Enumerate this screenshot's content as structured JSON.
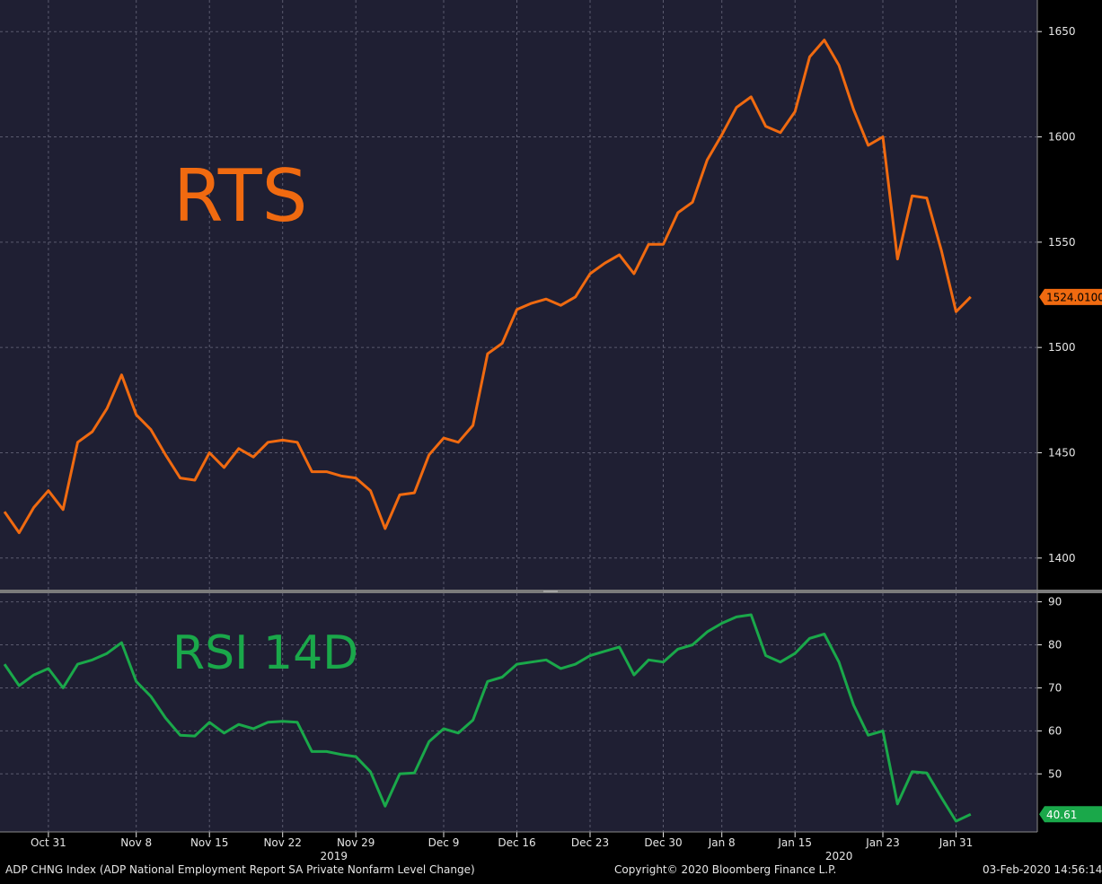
{
  "footer": {
    "left": "ADP CHNG Index (ADP National Employment Report SA Private Nonfarm Level Change)",
    "center": "Copyright© 2020 Bloomberg Finance L.P.",
    "right": "03-Feb-2020 14:56:14"
  },
  "colors": {
    "background": "#1f1f33",
    "rts_line": "#f06a10",
    "rsi_line": "#1aa84a",
    "grid": "#5a5a6e",
    "axis_text": "#e6e6e6"
  },
  "chart_data": [
    {
      "type": "line",
      "annotation": "RTS",
      "ylim": [
        1385,
        1665
      ],
      "yticks": [
        1400,
        1450,
        1500,
        1550,
        1600,
        1650
      ],
      "grid": true,
      "last_value_label": "1524.0100",
      "series": [
        {
          "values": [
            1422,
            1412,
            1424,
            1432,
            1423,
            1455,
            1460,
            1471,
            1487,
            1468,
            1461,
            1449,
            1438,
            1437,
            1450,
            1443,
            1452,
            1448,
            1455,
            1456,
            1455,
            1441,
            1441,
            1439,
            1438,
            1432,
            1414,
            1430,
            1431,
            1449,
            1457,
            1455,
            1463,
            1497,
            1502,
            1518,
            1521,
            1523,
            1520,
            1524,
            1535,
            1540,
            1544,
            1535,
            1549,
            1549,
            1564,
            1569,
            1589,
            1601,
            1614,
            1619,
            1605,
            1602,
            1612,
            1638,
            1646,
            1634,
            1613,
            1596,
            1600,
            1542,
            1572,
            1571,
            1546,
            1517,
            1524
          ]
        }
      ]
    },
    {
      "type": "line",
      "annotation": "RSI 14D",
      "ylim": [
        36.5,
        92
      ],
      "yticks": [
        50,
        60,
        70,
        80,
        90
      ],
      "grid": true,
      "last_value_label": "40.61",
      "series": [
        {
          "values": [
            75.5,
            70.5,
            73,
            74.5,
            70,
            75.5,
            76.5,
            78,
            80.5,
            71.5,
            68,
            63,
            59,
            58.8,
            62,
            59.5,
            61.5,
            60.5,
            62,
            62.2,
            62,
            55.2,
            55.2,
            54.5,
            54,
            50.5,
            42.5,
            50,
            50.2,
            57.5,
            60.5,
            59.5,
            62.5,
            71.5,
            72.5,
            75.5,
            76,
            76.5,
            74.5,
            75.5,
            77.5,
            78.5,
            79.5,
            73,
            76.5,
            76,
            79,
            80,
            83,
            85,
            86.5,
            87,
            77.5,
            76,
            78,
            81.5,
            82.5,
            76,
            66,
            59,
            60,
            43,
            50.5,
            50.2,
            44.5,
            39,
            40.61
          ]
        }
      ]
    }
  ],
  "x_axis": {
    "tick_labels": [
      "Oct 31",
      "Nov 8",
      "Nov 15",
      "Nov 22",
      "Nov 29",
      "Dec 9",
      "Dec 16",
      "Dec 23",
      "Dec 30",
      "Jan 8",
      "Jan 15",
      "Jan 23",
      "Jan 31"
    ],
    "tick_index": [
      3,
      9,
      14,
      19,
      24,
      30,
      35,
      40,
      45,
      49,
      54,
      60,
      65
    ],
    "year_labels": [
      "2019",
      "2020"
    ],
    "year_index": [
      22.5,
      57
    ]
  }
}
